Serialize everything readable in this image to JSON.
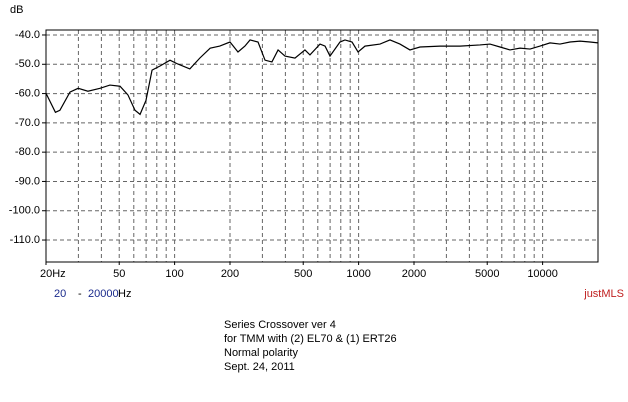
{
  "chart_data": {
    "type": "line",
    "ylabel": "dB",
    "x": [
      20,
      22.5,
      23.8,
      27,
      29.9,
      33.8,
      39.3,
      44.5,
      50.5,
      55.8,
      60.9,
      64.9,
      69.9,
      75.4,
      83.3,
      94.4,
      104,
      121,
      137,
      156,
      176,
      200,
      221,
      241,
      257,
      284,
      310,
      338,
      365,
      398,
      451,
      511,
      544,
      617,
      657,
      699,
      792,
      843,
      921,
      993,
      1083,
      1307,
      1481,
      1678,
      1901,
      2156,
      2769,
      3557,
      4567,
      5176,
      5868,
      6647,
      7537,
      8544,
      9681,
      10970,
      12430,
      14090,
      15970,
      18100,
      20000
    ],
    "values": [
      -59.9,
      -66.4,
      -65.7,
      -59.5,
      -58.2,
      -59.2,
      -58.2,
      -57.1,
      -57.5,
      -60.5,
      -65.7,
      -67.1,
      -62.3,
      -52.0,
      -50.6,
      -48.6,
      -49.9,
      -51.6,
      -47.9,
      -44.5,
      -43.8,
      -42.4,
      -45.8,
      -43.8,
      -41.7,
      -42.4,
      -48.6,
      -49.2,
      -45.1,
      -47.2,
      -47.9,
      -45.1,
      -46.8,
      -43.1,
      -43.8,
      -47.2,
      -42.4,
      -41.7,
      -42.4,
      -45.8,
      -43.8,
      -43.1,
      -41.7,
      -43.1,
      -45.1,
      -44.1,
      -43.8,
      -43.8,
      -43.4,
      -43.1,
      -44.1,
      -45.1,
      -44.5,
      -44.8,
      -43.8,
      -42.7,
      -43.1,
      -42.4,
      -42.1,
      -42.4,
      -42.7
    ],
    "color": "#000000",
    "log_x": true,
    "xlim": [
      20,
      20000
    ],
    "xticks": [
      {
        "value": 20,
        "label": "20Hz"
      },
      50,
      100,
      200,
      500,
      1000,
      2000,
      5000,
      10000
    ],
    "xgrid": [
      30,
      40,
      50,
      60,
      70,
      80,
      90,
      100,
      200,
      300,
      400,
      500,
      600,
      700,
      800,
      900,
      1000,
      2000,
      3000,
      4000,
      5000,
      6000,
      7000,
      8000,
      9000,
      10000
    ],
    "ylim": [
      -117.5,
      -38.3
    ],
    "yticks": [
      {
        "value": -40,
        "label": "-40.0"
      },
      {
        "value": -50,
        "label": "-50.0"
      },
      {
        "value": -60,
        "label": "-60.0"
      },
      {
        "value": -70,
        "label": "-70.0"
      },
      {
        "value": -80,
        "label": "-80.0"
      },
      {
        "value": -90,
        "label": "-90.0"
      },
      {
        "value": -100,
        "label": "-100.0"
      },
      {
        "value": -110,
        "label": "-110.0"
      }
    ],
    "grid": true,
    "freq_range": [
      "20",
      "-",
      "20000",
      "Hz"
    ],
    "brand": "justMLS",
    "notes": [
      "Series Crossover ver 4",
      "for TMM with (2) EL70 & (1) ERT26",
      "Normal polarity",
      "Sept. 24, 2011"
    ]
  }
}
